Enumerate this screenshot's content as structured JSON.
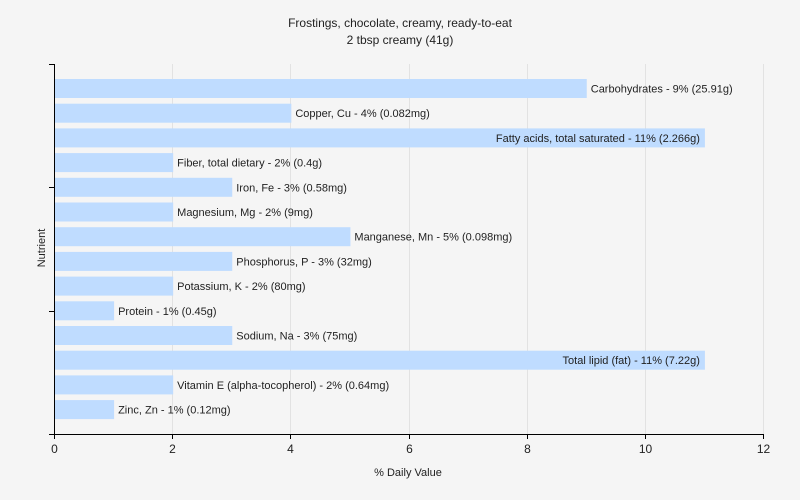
{
  "chart_data": {
    "type": "bar",
    "orientation": "horizontal",
    "title": "Frostings, chocolate, creamy, ready-to-eat",
    "subtitle": "2 tbsp creamy (41g)",
    "xlabel": "% Daily Value",
    "ylabel": "Nutrient",
    "xlim": [
      0,
      12
    ],
    "xticks": [
      0,
      2,
      4,
      6,
      8,
      10,
      12
    ],
    "grid": true,
    "bar_color": "#bfdcff",
    "categories": [
      "Carbohydrates",
      "Copper, Cu",
      "Fatty acids, total saturated",
      "Fiber, total dietary",
      "Iron, Fe",
      "Magnesium, Mg",
      "Manganese, Mn",
      "Phosphorus, P",
      "Potassium, K",
      "Protein",
      "Sodium, Na",
      "Total lipid (fat)",
      "Vitamin E (alpha-tocopherol)",
      "Zinc, Zn"
    ],
    "values": [
      9,
      4,
      11,
      2,
      3,
      2,
      5,
      3,
      2,
      1,
      3,
      11,
      2,
      1
    ],
    "bar_labels": [
      "Carbohydrates - 9% (25.91g)",
      "Copper, Cu - 4% (0.082mg)",
      "Fatty acids, total saturated - 11% (2.266g)",
      "Fiber, total dietary - 2% (0.4g)",
      "Iron, Fe - 3% (0.58mg)",
      "Magnesium, Mg - 2% (9mg)",
      "Manganese, Mn - 5% (0.098mg)",
      "Phosphorus, P - 3% (32mg)",
      "Potassium, K - 2% (80mg)",
      "Protein - 1% (0.45g)",
      "Sodium, Na - 3% (75mg)",
      "Total lipid (fat) - 11% (7.22g)",
      "Vitamin E (alpha-tocopherol) - 2% (0.64mg)",
      "Zinc, Zn - 1% (0.12mg)"
    ]
  }
}
